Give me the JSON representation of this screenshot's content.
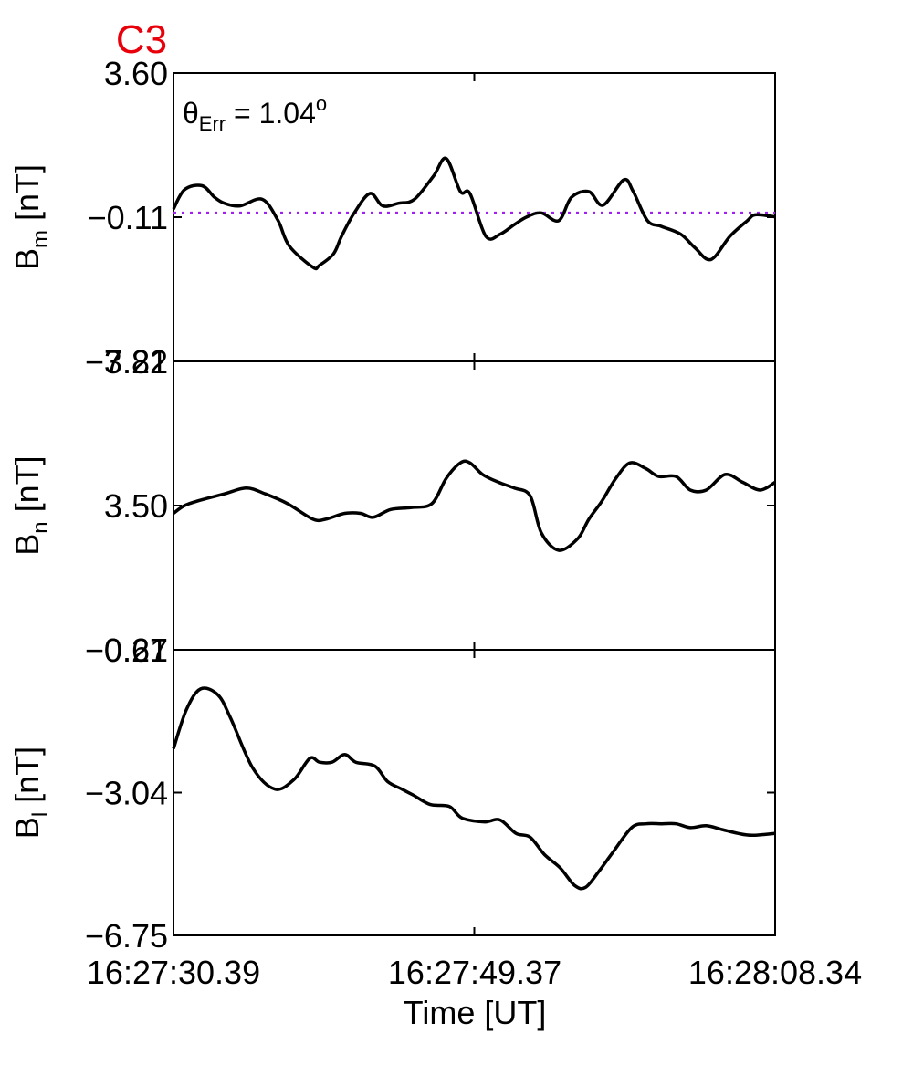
{
  "chart_data": {
    "type": "line",
    "title": "C3",
    "title_color": "#e8000b",
    "xlabel": "Time [UT]",
    "x_tick_labels": [
      "16:27:30.39",
      "16:27:49.37",
      "16:28:08.34"
    ],
    "x_range_seconds": [
      0,
      37.95
    ],
    "annotation": {
      "prefix": "θ",
      "subscript": "Err",
      "value": " =  1.04",
      "superscript": "o"
    },
    "panels": [
      {
        "name": "Bm",
        "ylabel_main": "B",
        "ylabel_sub": "m",
        "ylabel_unit": " [nT]",
        "ylim": [
          -3.82,
          3.6
        ],
        "yticks": [
          3.6,
          -0.11,
          -3.82
        ],
        "ytick_labels": [
          "3.60",
          "−0.11",
          "−3.82"
        ],
        "reference_line": {
          "y": 0.0,
          "style": "dotted",
          "color": "#a020f0"
        },
        "x": [
          0,
          0.7,
          1.8,
          2.6,
          3.2,
          4.2,
          5.6,
          6.6,
          7.3,
          8.8,
          9.2,
          10.1,
          10.6,
          11.4,
          12.4,
          13.2,
          14.2,
          15.2,
          16.4,
          17.2,
          18.1,
          18.7,
          19.7,
          20.6,
          21.5,
          22.3,
          23.2,
          24.3,
          25.1,
          26.2,
          27.1,
          28.4,
          29.0,
          29.9,
          30.8,
          32.0,
          32.9,
          33.9,
          35.1,
          36.2,
          36.7,
          37.95
        ],
        "values": [
          0.1,
          0.6,
          0.7,
          0.4,
          0.25,
          0.18,
          0.35,
          -0.2,
          -0.85,
          -1.4,
          -1.35,
          -1.05,
          -0.6,
          0.0,
          0.5,
          0.18,
          0.25,
          0.35,
          0.95,
          1.4,
          0.55,
          0.5,
          -0.6,
          -0.55,
          -0.3,
          -0.1,
          0.0,
          -0.2,
          0.4,
          0.55,
          0.2,
          0.85,
          0.55,
          -0.2,
          -0.35,
          -0.55,
          -0.9,
          -1.2,
          -0.6,
          -0.2,
          -0.05,
          -0.1
        ]
      },
      {
        "name": "Bn",
        "ylabel_main": "B",
        "ylabel_sub": "n",
        "ylabel_unit": " [nT]",
        "ylim": [
          -0.21,
          7.21
        ],
        "yticks": [
          7.21,
          3.5,
          -0.21
        ],
        "ytick_labels": [
          "7.21",
          "3.50",
          "−0.21"
        ],
        "x": [
          0,
          0.7,
          1.8,
          3.2,
          4.6,
          5.8,
          7.2,
          8.8,
          9.6,
          10.8,
          11.8,
          12.6,
          13.7,
          15.0,
          16.3,
          17.2,
          18.1,
          18.7,
          19.5,
          20.5,
          21.5,
          22.5,
          23.2,
          24.3,
          25.5,
          26.2,
          27.0,
          27.9,
          28.8,
          29.8,
          30.6,
          31.7,
          32.6,
          33.6,
          34.8,
          35.9,
          37.0,
          37.95
        ],
        "values": [
          3.3,
          3.5,
          3.65,
          3.8,
          3.95,
          3.8,
          3.55,
          3.15,
          3.15,
          3.3,
          3.3,
          3.2,
          3.4,
          3.45,
          3.55,
          4.2,
          4.6,
          4.6,
          4.3,
          4.1,
          3.95,
          3.75,
          2.8,
          2.35,
          2.65,
          3.15,
          3.6,
          4.2,
          4.6,
          4.45,
          4.25,
          4.25,
          3.9,
          3.9,
          4.3,
          4.1,
          3.9,
          4.1
        ]
      },
      {
        "name": "Bl",
        "ylabel_main": "B",
        "ylabel_sub": "l",
        "ylabel_unit": " [nT]",
        "ylim": [
          -6.75,
          0.67
        ],
        "yticks": [
          0.67,
          -3.04,
          -6.75
        ],
        "ytick_labels": [
          "0.67",
          "−3.04",
          "−6.75"
        ],
        "x": [
          0,
          0.8,
          1.7,
          2.8,
          3.6,
          5.0,
          6.4,
          7.6,
          8.6,
          9.2,
          10.0,
          10.8,
          11.5,
          12.7,
          13.5,
          14.4,
          15.1,
          16.2,
          17.4,
          18.2,
          19.6,
          20.6,
          21.6,
          22.5,
          23.4,
          24.4,
          25.3,
          26.0,
          26.9,
          27.7,
          28.9,
          29.8,
          30.8,
          31.7,
          32.6,
          33.6,
          34.6,
          35.6,
          36.5,
          37.95
        ],
        "values": [
          -1.9,
          -0.9,
          -0.35,
          -0.5,
          -1.1,
          -2.4,
          -2.95,
          -2.7,
          -2.15,
          -2.25,
          -2.25,
          -2.05,
          -2.25,
          -2.35,
          -2.75,
          -2.95,
          -3.1,
          -3.35,
          -3.4,
          -3.7,
          -3.8,
          -3.75,
          -4.1,
          -4.2,
          -4.65,
          -5.0,
          -5.45,
          -5.5,
          -5.05,
          -4.6,
          -3.95,
          -3.85,
          -3.85,
          -3.85,
          -3.95,
          -3.9,
          -4.0,
          -4.1,
          -4.15,
          -4.1
        ]
      }
    ]
  }
}
